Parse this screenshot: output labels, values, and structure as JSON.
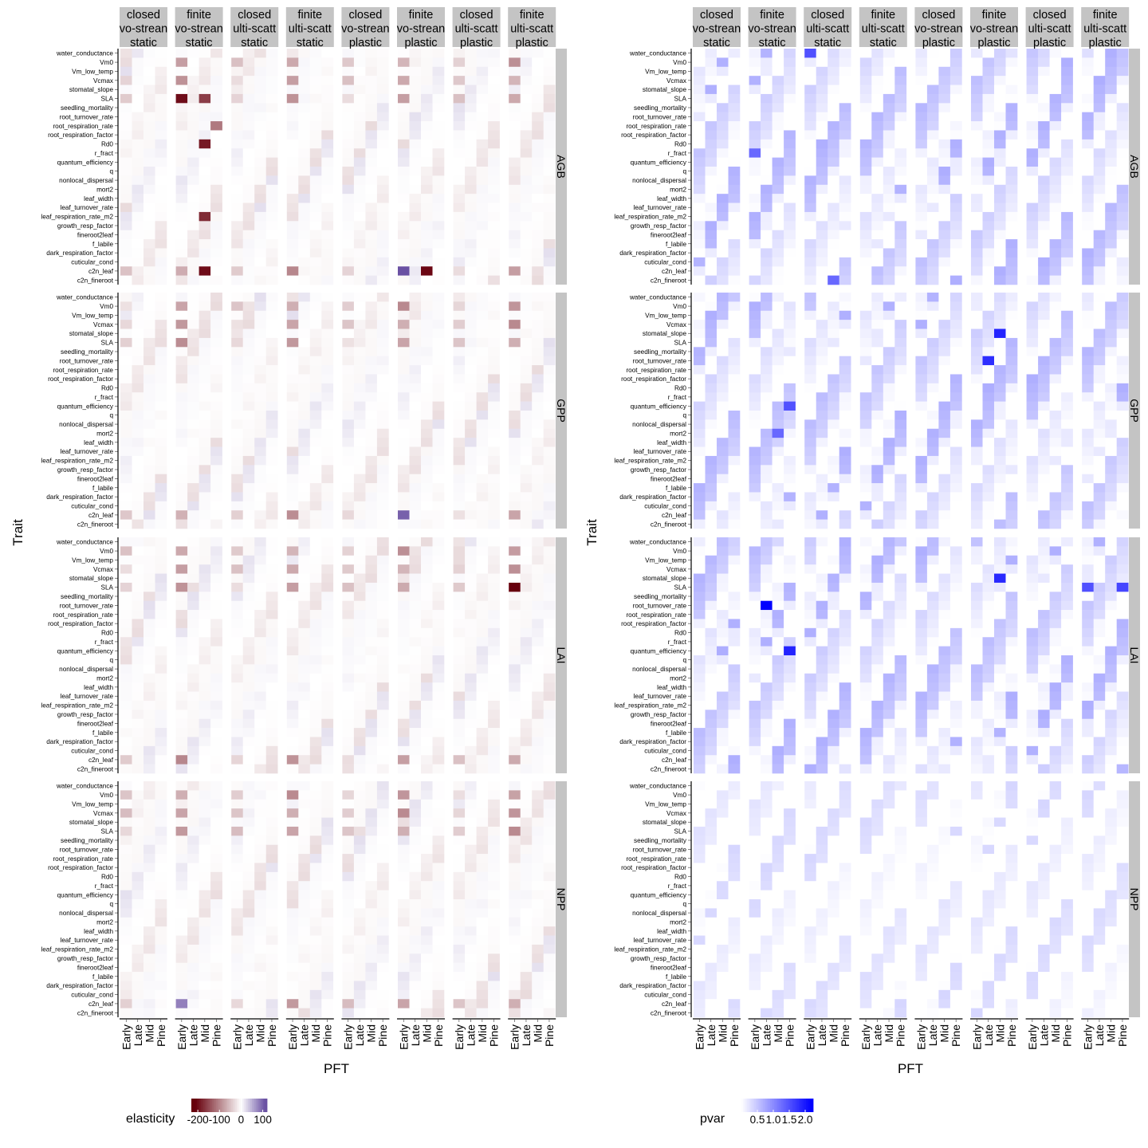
{
  "chart_data": [
    {
      "type": "heatmap",
      "value_name": "elasticity",
      "xlabel": "PFT",
      "ylabel": "Trait",
      "column_facets": [
        [
          "closed",
          "two-stream",
          "static"
        ],
        [
          "finite",
          "two-stream",
          "static"
        ],
        [
          "closed",
          "multi-scatter",
          "static"
        ],
        [
          "finite",
          "multi-scatter",
          "static"
        ],
        [
          "closed",
          "two-stream",
          "plastic"
        ],
        [
          "finite",
          "two-stream",
          "plastic"
        ],
        [
          "closed",
          "multi-scatter",
          "plastic"
        ],
        [
          "finite",
          "multi-scatter",
          "plastic"
        ]
      ],
      "column_facets_display": [
        [
          "closed",
          "vo-strean",
          "static"
        ],
        [
          "finite",
          "vo-strean",
          "static"
        ],
        [
          "closed",
          "ulti-scatt",
          "static"
        ],
        [
          "finite",
          "ulti-scatt",
          "static"
        ],
        [
          "closed",
          "vo-strean",
          "plastic"
        ],
        [
          "finite",
          "vo-strean",
          "plastic"
        ],
        [
          "closed",
          "ulti-scatt",
          "plastic"
        ],
        [
          "finite",
          "ulti-scatt",
          "plastic"
        ]
      ],
      "row_facets": [
        "AGB",
        "GPP",
        "LAI",
        "NPP"
      ],
      "pfts": [
        "Early",
        "Late",
        "Mid",
        "Pine"
      ],
      "traits": [
        "water_conductance",
        "Vm0",
        "Vm_low_temp",
        "Vcmax",
        "stomatal_slope",
        "SLA",
        "seedling_mortality",
        "root_turnover_rate",
        "root_respiration_rate",
        "root_respiration_factor",
        "Rd0",
        "r_fract",
        "quantum_efficiency",
        "q",
        "nonlocal_dispersal",
        "mort2",
        "leaf_width",
        "leaf_turnover_rate",
        "leaf_respiration_rate_m2",
        "growth_resp_factor",
        "fineroot2leaf",
        "f_labile",
        "dark_respiration_factor",
        "cuticular_cond",
        "c2n_leaf",
        "c2n_fineroot"
      ],
      "legend": {
        "title": "elasticity",
        "ticks": [
          "-200",
          "-100",
          "0",
          "100"
        ],
        "tick_values": [
          -200,
          -100,
          0,
          100
        ],
        "range": [
          -230,
          120
        ],
        "colors": {
          "low": "#67000d",
          "mid": "#ffffff",
          "high": "#6a51a3"
        },
        "placement": "bottom"
      },
      "highlights": [
        {
          "row": "AGB",
          "col": 2,
          "trait": "SLA",
          "pft": "Early",
          "value": -200
        },
        {
          "row": "AGB",
          "col": 2,
          "trait": "Rd0",
          "pft": "Mid",
          "value": -190
        },
        {
          "row": "AGB",
          "col": 2,
          "trait": "leaf_respiration_rate_m2",
          "pft": "Mid",
          "value": -175
        },
        {
          "row": "AGB",
          "col": 2,
          "trait": "c2n_leaf",
          "pft": "Mid",
          "value": -200
        },
        {
          "row": "AGB",
          "col": 2,
          "trait": "SLA",
          "pft": "Mid",
          "value": -160
        },
        {
          "row": "AGB",
          "col": 2,
          "trait": "root_respiration_rate",
          "pft": "Pine",
          "value": -110
        },
        {
          "row": "AGB",
          "col": 6,
          "trait": "c2n_leaf",
          "pft": "Mid",
          "value": -205
        },
        {
          "row": "AGB",
          "col": 6,
          "trait": "c2n_leaf",
          "pft": "Early",
          "value": 110
        },
        {
          "row": "GPP",
          "col": 6,
          "trait": "c2n_leaf",
          "pft": "Early",
          "value": 100
        },
        {
          "row": "LAI",
          "col": 8,
          "trait": "SLA",
          "pft": "Early",
          "value": -220
        },
        {
          "row": "NPP",
          "col": 2,
          "trait": "c2n_leaf",
          "pft": "Early",
          "value": 80
        }
      ]
    },
    {
      "type": "heatmap",
      "value_name": "pvar",
      "xlabel": "PFT",
      "ylabel": "Trait",
      "column_facets": [
        [
          "closed",
          "two-stream",
          "static"
        ],
        [
          "finite",
          "two-stream",
          "static"
        ],
        [
          "closed",
          "multi-scatter",
          "static"
        ],
        [
          "finite",
          "multi-scatter",
          "static"
        ],
        [
          "closed",
          "two-stream",
          "plastic"
        ],
        [
          "finite",
          "two-stream",
          "plastic"
        ],
        [
          "closed",
          "multi-scatter",
          "plastic"
        ],
        [
          "finite",
          "multi-scatter",
          "plastic"
        ]
      ],
      "row_facets": [
        "AGB",
        "GPP",
        "LAI",
        "NPP"
      ],
      "pfts": [
        "Early",
        "Late",
        "Mid",
        "Pine"
      ],
      "legend": {
        "title": "pvar",
        "ticks": [
          "0.5",
          "1.0",
          "1.5",
          "2.0"
        ],
        "tick_values": [
          0.5,
          1.0,
          1.5,
          2.0
        ],
        "range": [
          0,
          2.25
        ],
        "colors": {
          "low": "#ffffff",
          "high": "#0000ff"
        },
        "placement": "bottom"
      },
      "highlights": [
        {
          "row": "LAI",
          "col": 2,
          "trait": "root_turnover_rate",
          "pft": "Late",
          "value": 2.2
        },
        {
          "row": "GPP",
          "col": 6,
          "trait": "root_turnover_rate",
          "pft": "Late",
          "value": 1.8
        },
        {
          "row": "GPP",
          "col": 6,
          "trait": "stomatal_slope",
          "pft": "Mid",
          "value": 1.9
        },
        {
          "row": "LAI",
          "col": 6,
          "trait": "stomatal_slope",
          "pft": "Mid",
          "value": 1.85
        },
        {
          "row": "LAI",
          "col": 2,
          "trait": "quantum_efficiency",
          "pft": "Pine",
          "value": 1.9
        },
        {
          "row": "GPP",
          "col": 2,
          "trait": "quantum_efficiency",
          "pft": "Pine",
          "value": 1.5
        },
        {
          "row": "AGB",
          "col": 3,
          "trait": "water_conductance",
          "pft": "Early",
          "value": 1.5
        },
        {
          "row": "AGB",
          "col": 2,
          "trait": "r_fract",
          "pft": "Early",
          "value": 1.3
        },
        {
          "row": "LAI",
          "col": 8,
          "trait": "SLA",
          "pft": "Pine",
          "value": 1.6
        },
        {
          "row": "LAI",
          "col": 8,
          "trait": "SLA",
          "pft": "Early",
          "value": 1.5
        },
        {
          "row": "GPP",
          "col": 2,
          "trait": "mort2",
          "pft": "Mid",
          "value": 1.3
        },
        {
          "row": "AGB",
          "col": 3,
          "trait": "c2n_fineroot",
          "pft": "Mid",
          "value": 1.3
        }
      ]
    }
  ]
}
